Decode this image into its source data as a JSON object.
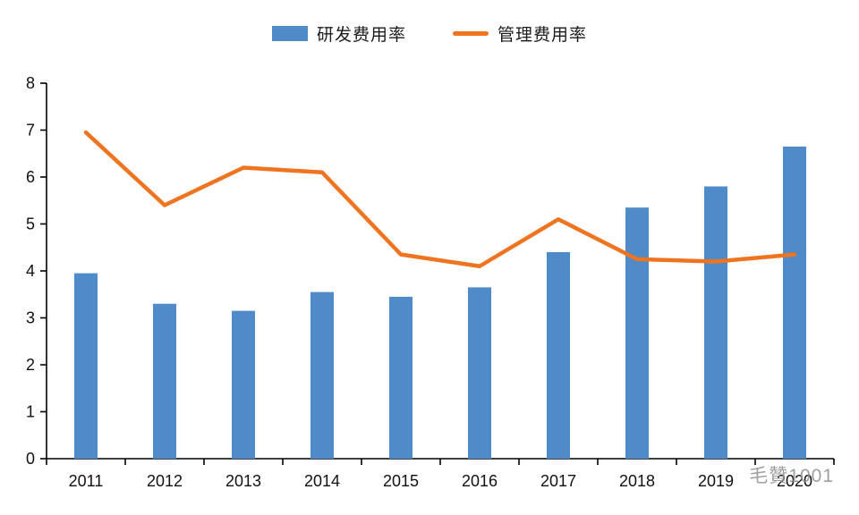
{
  "watermark": "毛贊1001",
  "chart_data": {
    "type": "bar",
    "title": "",
    "xlabel": "",
    "ylabel": "",
    "categories": [
      "2011",
      "2012",
      "2013",
      "2014",
      "2015",
      "2016",
      "2017",
      "2018",
      "2019",
      "2020"
    ],
    "series": [
      {
        "name": "研发费用率",
        "type": "bar",
        "color": "#4E8BC8",
        "values": [
          3.95,
          3.3,
          3.15,
          3.55,
          3.45,
          3.65,
          4.4,
          5.35,
          5.8,
          6.65
        ]
      },
      {
        "name": "管理费用率",
        "type": "line",
        "color": "#EE7420",
        "values": [
          6.95,
          5.4,
          6.2,
          6.1,
          4.35,
          4.1,
          5.1,
          4.25,
          4.2,
          4.35
        ]
      }
    ],
    "ylim": [
      0,
      8
    ],
    "yticks": [
      0,
      1,
      2,
      3,
      4,
      5,
      6,
      7,
      8
    ],
    "grid": false,
    "legend_position": "top"
  }
}
